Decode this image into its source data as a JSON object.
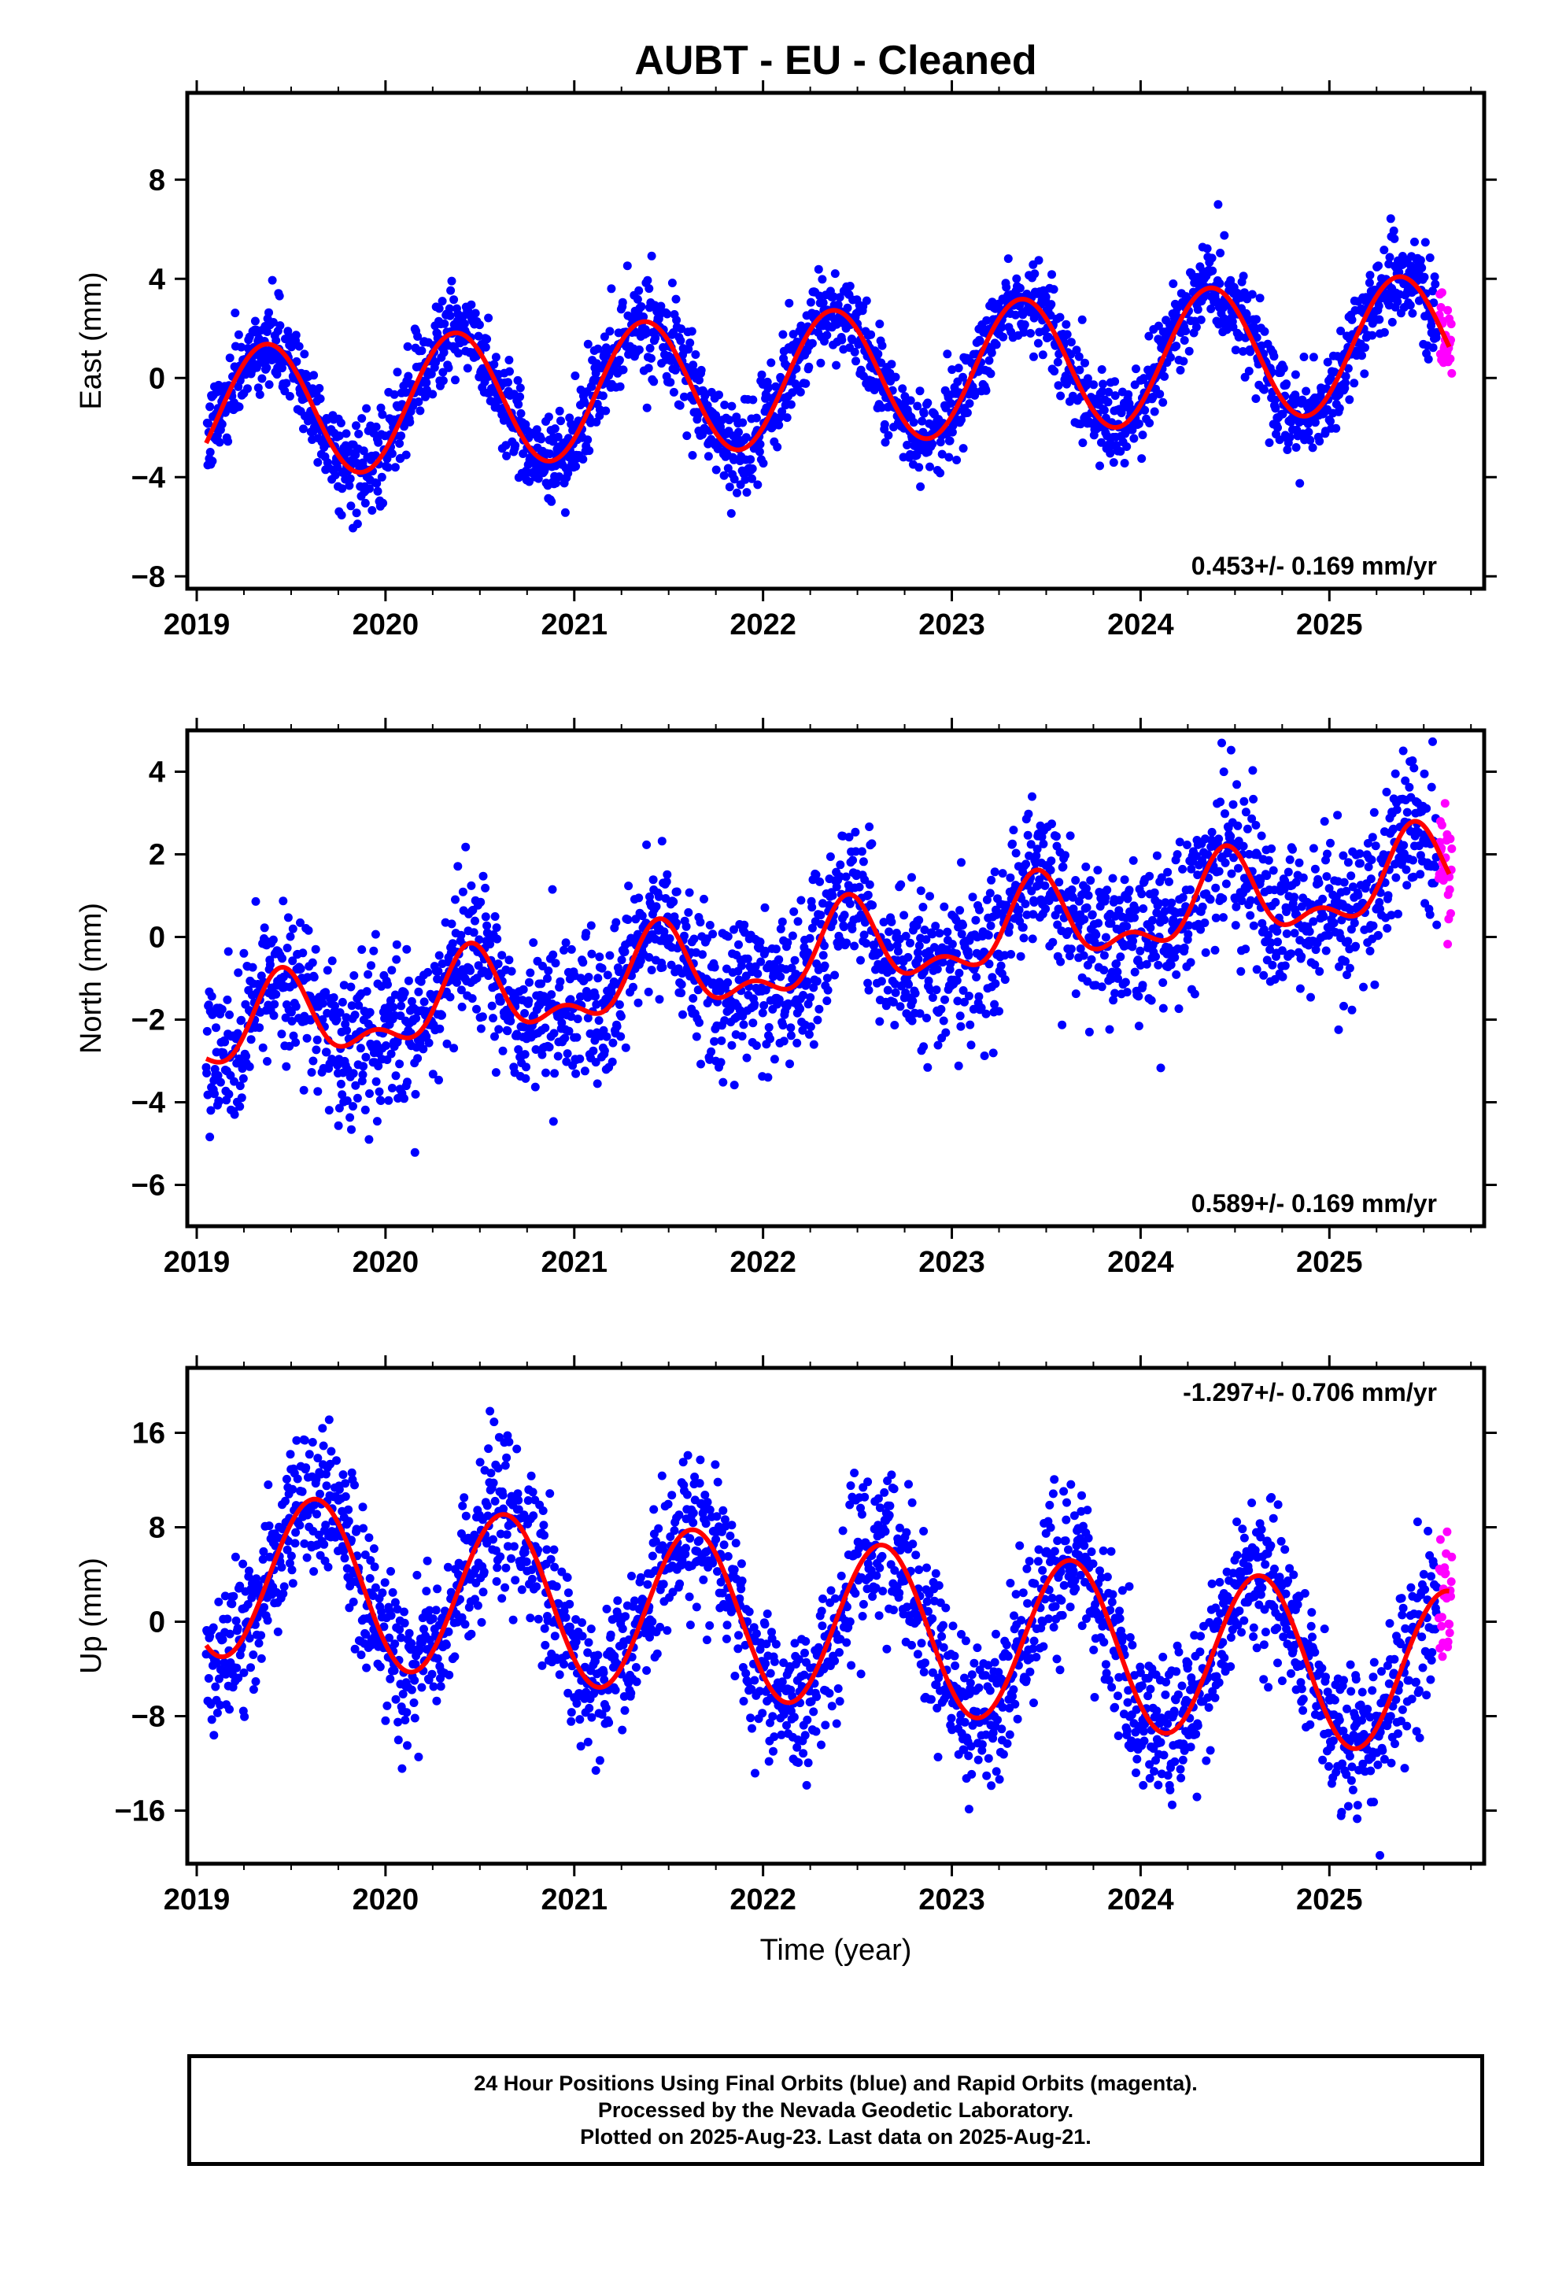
{
  "title": "AUBT  - EU - Cleaned",
  "colors": {
    "final_orbits": "#0000ff",
    "rapid_orbits": "#ff00ff",
    "model_fit": "#ff0000",
    "frame": "#000000"
  },
  "footer": {
    "line1": "24 Hour Positions Using Final Orbits (blue) and Rapid Orbits (magenta).",
    "line2": "Processed by the Nevada Geodetic Laboratory.",
    "line3": "Plotted on 2025-Aug-23. Last data on 2025-Aug-21."
  },
  "chart_data": [
    {
      "type": "scatter",
      "ylabel": "East (mm)",
      "xlabel": "",
      "xlim": [
        2018.95,
        2025.82
      ],
      "ylim": [
        -8.5,
        11.5
      ],
      "x_ticks": [
        2019,
        2020,
        2021,
        2022,
        2023,
        2024,
        2025
      ],
      "y_ticks": [
        -8,
        -4,
        0,
        4,
        8
      ],
      "y_tick_labels": [
        "−8",
        "−4",
        "0",
        "4",
        "8"
      ],
      "rate_label": "0.453+/- 0.169 mm/yr",
      "rate_position": "bottom-right",
      "model": {
        "offset": -1.5,
        "rate": 0.453,
        "epoch": 2019.0,
        "annual_amp": 2.7,
        "annual_phase_peak": 0.37,
        "semiannual_amp": 0.0,
        "semiannual_phase_peak": 0.0
      },
      "scatter_sigma": 0.9,
      "series": [
        {
          "name": "Final Orbits",
          "color": "#0000ff",
          "x_range": [
            2019.05,
            2025.57
          ]
        },
        {
          "name": "Rapid Orbits",
          "color": "#ff00ff",
          "x_range": [
            2025.57,
            2025.64
          ]
        }
      ]
    },
    {
      "type": "scatter",
      "ylabel": "North (mm)",
      "xlabel": "",
      "xlim": [
        2018.95,
        2025.82
      ],
      "ylim": [
        -7,
        5
      ],
      "x_ticks": [
        2019,
        2020,
        2021,
        2022,
        2023,
        2024,
        2025
      ],
      "y_ticks": [
        -6,
        -4,
        -2,
        0,
        2,
        4
      ],
      "y_tick_labels": [
        "−6",
        "−4",
        "−2",
        "0",
        "2",
        "4"
      ],
      "rate_label": "0.589+/- 0.169 mm/yr",
      "rate_position": "bottom-right",
      "model": {
        "offset": -2.4,
        "rate": 0.589,
        "epoch": 2019.0,
        "annual_amp": 0.9,
        "annual_phase_peak": 0.45,
        "semiannual_amp": 0.5,
        "semiannual_phase_peak": 0.45
      },
      "scatter_sigma": 0.9,
      "series": [
        {
          "name": "Final Orbits",
          "color": "#0000ff",
          "x_range": [
            2019.05,
            2025.57
          ]
        },
        {
          "name": "Rapid Orbits",
          "color": "#ff00ff",
          "x_range": [
            2025.57,
            2025.64
          ]
        }
      ]
    },
    {
      "type": "scatter",
      "ylabel": "Up (mm)",
      "xlabel": "Time (year)",
      "xlim": [
        2018.95,
        2025.82
      ],
      "ylim": [
        -20.5,
        21.5
      ],
      "x_ticks": [
        2019,
        2020,
        2021,
        2022,
        2023,
        2024,
        2025
      ],
      "y_ticks": [
        -16,
        -8,
        0,
        8,
        16
      ],
      "y_tick_labels": [
        "−16",
        "−8",
        "0",
        "8",
        "16"
      ],
      "rate_label": "-1.297+/- 0.706 mm/yr",
      "rate_position": "top-right",
      "model": {
        "offset": 4.2,
        "rate": -1.297,
        "epoch": 2019.0,
        "annual_amp": 7.0,
        "annual_phase_peak": 0.63,
        "semiannual_amp": 0.0,
        "semiannual_phase_peak": 0.0
      },
      "scatter_sigma": 3.2,
      "series": [
        {
          "name": "Final Orbits",
          "color": "#0000ff",
          "x_range": [
            2019.05,
            2025.57
          ]
        },
        {
          "name": "Rapid Orbits",
          "color": "#ff00ff",
          "x_range": [
            2025.57,
            2025.64
          ]
        }
      ]
    }
  ]
}
